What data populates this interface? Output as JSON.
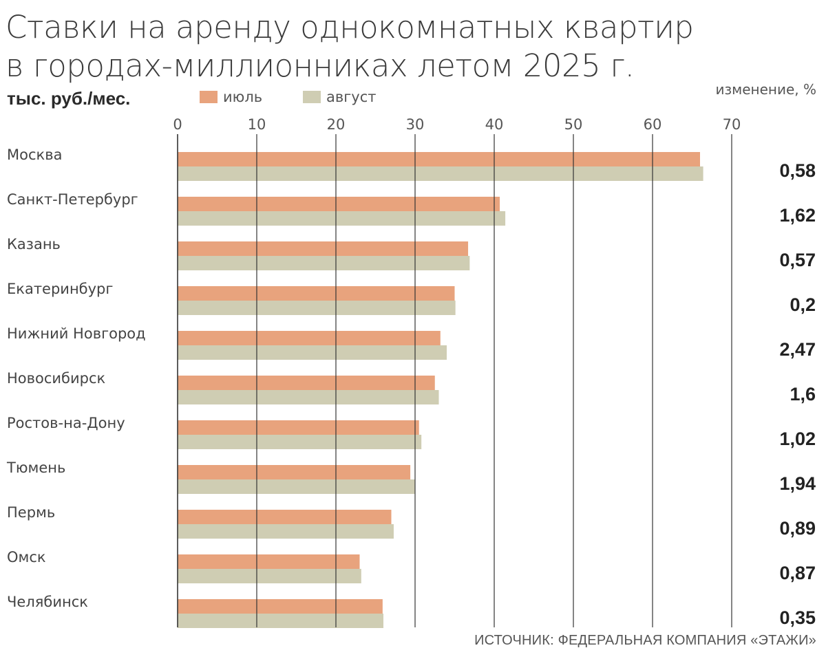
{
  "title_line1": "Ставки на аренду однокомнатных квартир",
  "title_line2": "в городах-миллионниках летом 2025 г.",
  "unit_label": "тыс. руб./мес.",
  "change_header": "изменение, %",
  "source": "ИСТОЧНИК: ФЕДЕРАЛЬНАЯ КОМПАНИЯ «ЭТАЖИ»",
  "colors": {
    "july": "#E8A37D",
    "august": "#CFCDB3",
    "axis": "#333333"
  },
  "chart_data": {
    "type": "bar",
    "orientation": "horizontal",
    "title": "Ставки на аренду однокомнатных квартир в городах-миллионниках летом 2025 г.",
    "xlabel": "тыс. руб./мес.",
    "xlim": [
      0,
      70
    ],
    "ticks": [
      0,
      10,
      20,
      30,
      40,
      50,
      60,
      70
    ],
    "grid": true,
    "legend": "top-left",
    "categories": [
      "Москва",
      "Санкт-Петербург",
      "Казань",
      "Екатеринбург",
      "Нижний Новгород",
      "Новосибирск",
      "Ростов-на-Дону",
      "Тюмень",
      "Пермь",
      "Омск",
      "Челябинск"
    ],
    "series": [
      {
        "name": "июль",
        "values": [
          66.0,
          40.7,
          36.7,
          35.0,
          33.2,
          32.5,
          30.5,
          29.4,
          27.0,
          23.0,
          25.9
        ]
      },
      {
        "name": "август",
        "values": [
          66.4,
          41.4,
          36.9,
          35.1,
          34.0,
          33.0,
          30.8,
          30.0,
          27.3,
          23.2,
          26.0
        ]
      }
    ],
    "change_percent": [
      "0,58",
      "1,62",
      "0,57",
      "0,2",
      "2,47",
      "1,6",
      "1,02",
      "1,94",
      "0,89",
      "0,87",
      "0,35"
    ]
  }
}
